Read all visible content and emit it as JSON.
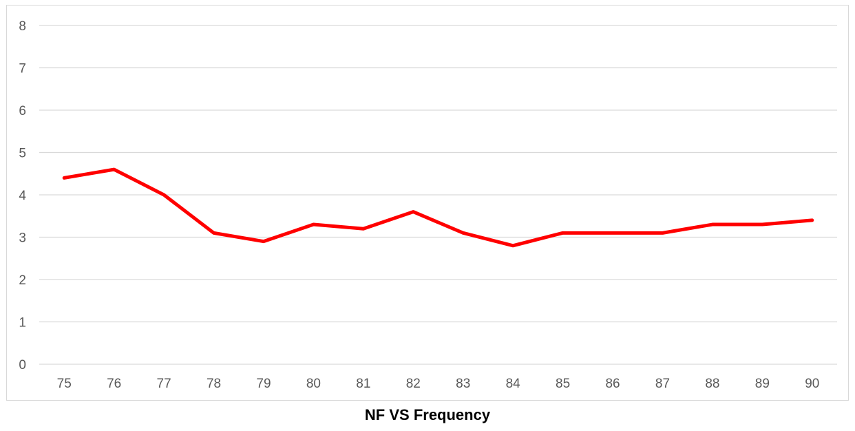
{
  "chart_data": {
    "type": "line",
    "title": "NF VS Frequency",
    "xlabel": "",
    "ylabel": "",
    "categories": [
      "75",
      "76",
      "77",
      "78",
      "79",
      "80",
      "81",
      "82",
      "83",
      "84",
      "85",
      "86",
      "87",
      "88",
      "89",
      "90"
    ],
    "series": [
      {
        "color": "#ff0000",
        "values": [
          4.4,
          4.6,
          4.0,
          3.1,
          2.9,
          3.3,
          3.2,
          3.6,
          3.1,
          2.8,
          3.1,
          3.1,
          3.1,
          3.3,
          3.3,
          3.4
        ]
      }
    ],
    "ylim": [
      0,
      8
    ],
    "yticks": [
      0,
      1,
      2,
      3,
      4,
      5,
      6,
      7,
      8
    ],
    "grid": true,
    "legend": "none"
  }
}
